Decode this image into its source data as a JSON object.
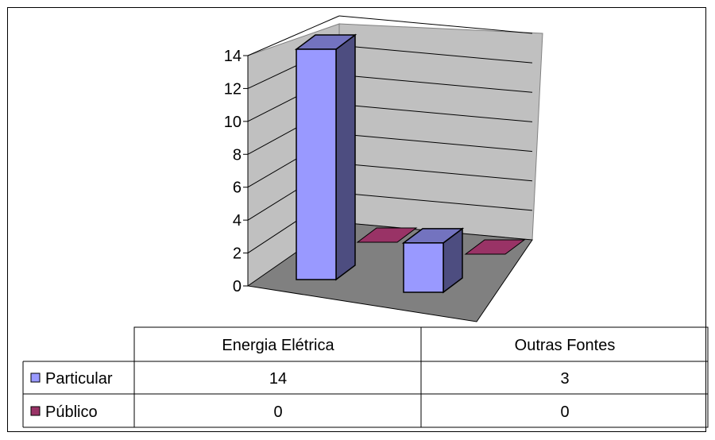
{
  "chart_data": {
    "type": "bar",
    "categories": [
      "Energia Elétrica",
      "Outras Fontes"
    ],
    "series": [
      {
        "name": "Particular",
        "values": [
          14,
          3
        ],
        "color": "#9999ff"
      },
      {
        "name": "Público",
        "values": [
          0,
          0
        ],
        "color": "#993366"
      }
    ],
    "yticks": [
      "0",
      "2",
      "4",
      "6",
      "8",
      "10",
      "12",
      "14"
    ],
    "ylim": [
      0,
      14
    ],
    "grid": true,
    "legend": "data-table",
    "data_table": {
      "header": [
        "Energia Elétrica",
        "Outras Fontes"
      ],
      "rows": [
        {
          "label": "Particular",
          "values": [
            "14",
            "3"
          ]
        },
        {
          "label": "Público",
          "values": [
            "0",
            "0"
          ]
        }
      ]
    }
  }
}
